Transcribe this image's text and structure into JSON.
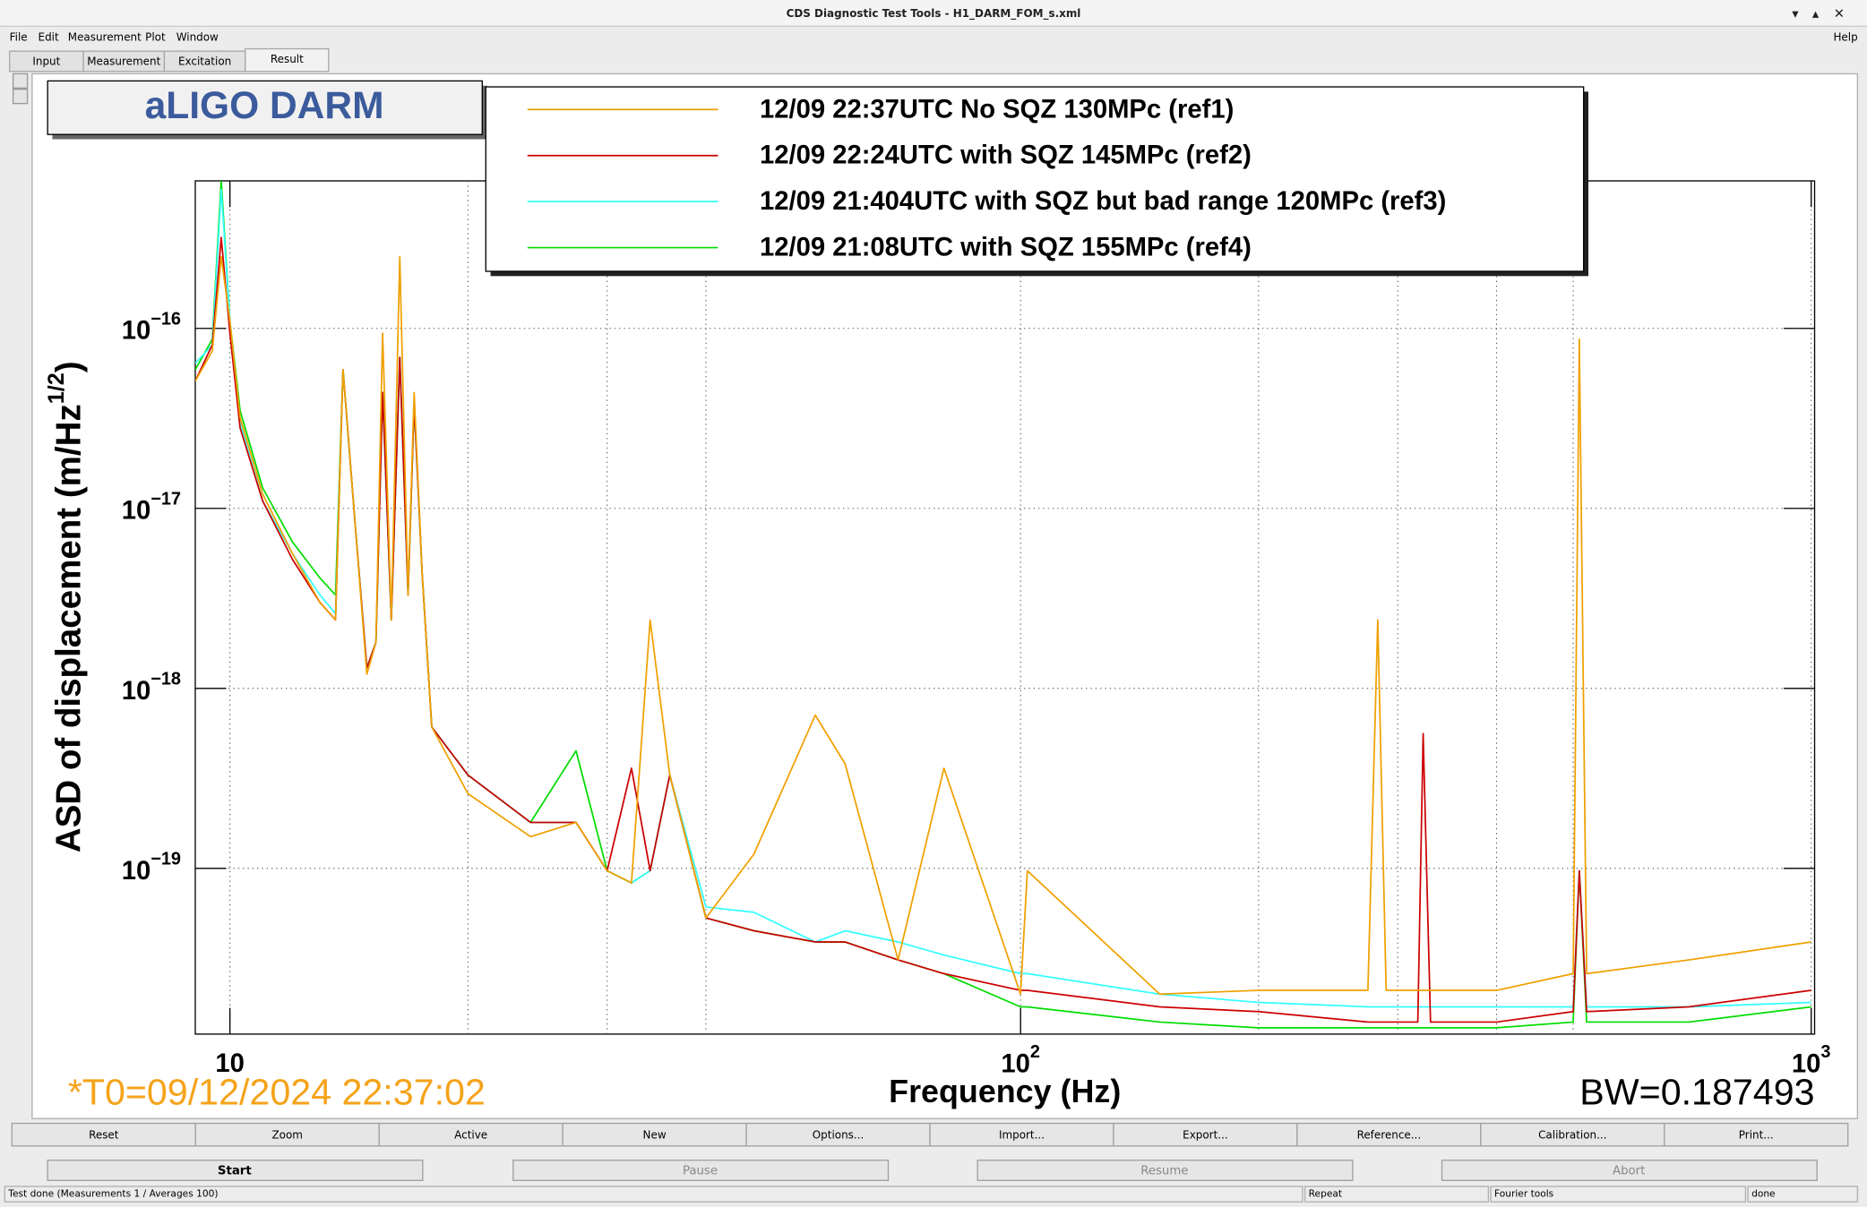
{
  "window": {
    "title": "CDS Diagnostic Test Tools - H1_DARM_FOM_s.xml",
    "menu": [
      "File",
      "Edit",
      "Measurement",
      "Plot",
      "Window"
    ],
    "help": "Help",
    "tabs": [
      "Input",
      "Measurement",
      "Excitation",
      "Result"
    ],
    "buttons": [
      "Reset",
      "Zoom",
      "Active",
      "New",
      "Options...",
      "Import...",
      "Export...",
      "Reference...",
      "Calibration...",
      "Print..."
    ],
    "controls": [
      "Start",
      "Pause",
      "Resume",
      "Abort"
    ],
    "status": [
      "Test done (Measurements 1 / Averages 100)",
      "Repeat",
      "Fourier tools",
      "done"
    ]
  },
  "chart_data": {
    "type": "line",
    "title": "aLIGO DARM",
    "xlabel": "Frequency (Hz)",
    "ylabel": {
      "text": "ASD of displacement (m/Hz",
      "exponent": "1/2",
      "close": ")"
    },
    "annotations": [
      "*T0=09/12/2024 22:37:02",
      "BW=0.187493"
    ],
    "x_log": true,
    "y_log": true,
    "grid": true,
    "xlim": [
      9.04,
      1010
    ],
    "ylim": [
      1.2e-20,
      6.6e-16
    ],
    "xticks": [
      10,
      {
        "value": 100,
        "label": "10",
        "exponent": "2"
      },
      {
        "value": 1000,
        "label": "10",
        "exponent": "3"
      }
    ],
    "xgrid": [
      20,
      30,
      40,
      200,
      300,
      400,
      500
    ],
    "yticks": [
      {
        "value": 1e-16,
        "label": "10",
        "exponent": "−16"
      },
      {
        "value": 1e-17,
        "label": "10",
        "exponent": "−17"
      },
      {
        "value": 1e-18,
        "label": "10",
        "exponent": "−18"
      },
      {
        "value": 1e-19,
        "label": "10",
        "exponent": "−19"
      }
    ],
    "x": [
      9.04,
      9.5,
      9.75,
      10,
      10.3,
      11,
      12,
      13,
      13.6,
      13.9,
      14.4,
      14.9,
      15.3,
      15.6,
      16.0,
      16.4,
      16.8,
      17.1,
      17.5,
      18,
      20,
      24,
      27.4,
      30,
      32.2,
      34,
      36,
      40,
      46,
      55,
      60,
      70,
      80,
      100,
      102,
      150,
      200,
      275,
      283,
      290,
      318,
      323,
      330,
      400,
      500,
      509,
      520,
      700,
      1000
    ],
    "series": [
      {
        "name": "12/09 22:37UTC No SQZ 130MPc (ref1)",
        "color": "#f0a000",
        "values": [
          5.1e-17,
          7.5e-17,
          2.5e-16,
          1.1e-16,
          3.2e-17,
          1.2e-17,
          5.6e-18,
          3e-18,
          2.4e-18,
          5.9e-17,
          8.2e-18,
          1.2e-18,
          1.8e-18,
          9.4e-17,
          2.4e-18,
          2.5e-16,
          3.3e-18,
          4.4e-17,
          4.4e-18,
          6.1e-19,
          2.6e-19,
          1.5e-19,
          1.8e-19,
          9.7e-20,
          8.3e-20,
          2.4e-18,
          3.3e-19,
          5.3e-20,
          1.2e-19,
          7.1e-19,
          3.8e-19,
          3.1e-20,
          3.6e-19,
          2e-20,
          9.7e-20,
          2e-20,
          2.1e-20,
          2.1e-20,
          2.4e-18,
          2.1e-20,
          2.1e-20,
          2.1e-20,
          2.1e-20,
          2.1e-20,
          2.6e-20,
          8.7e-17,
          2.6e-20,
          3.1e-20,
          3.9e-20
        ]
      },
      {
        "name": "12/09 22:24UTC with SQZ 145MPc (ref2)",
        "color": "#cc0000",
        "values": [
          5.1e-17,
          8.1e-17,
          3.2e-16,
          9.4e-17,
          2.8e-17,
          1.1e-17,
          5.2e-18,
          3e-18,
          2.4e-18,
          5.9e-17,
          8.2e-18,
          1.3e-18,
          1.8e-18,
          4.4e-17,
          2.4e-18,
          6.9e-17,
          3.3e-18,
          3.8e-17,
          4.4e-18,
          6.1e-19,
          3.3e-19,
          1.8e-19,
          1.8e-19,
          9.7e-20,
          3.6e-19,
          9.7e-20,
          3.3e-19,
          5.3e-20,
          4.5e-20,
          3.9e-20,
          3.9e-20,
          3.1e-20,
          2.6e-20,
          2.1e-20,
          2.1e-20,
          1.7e-20,
          1.6e-20,
          1.4e-20,
          1.4e-20,
          1.4e-20,
          1.4e-20,
          5.6e-19,
          1.4e-20,
          1.4e-20,
          1.6e-20,
          9.7e-20,
          1.6e-20,
          1.7e-20,
          2.1e-20
        ]
      },
      {
        "name": "12/09 21:404UTC with SQZ but bad range 120MPc (ref3)",
        "color": "#33ffff",
        "values": [
          6.4e-17,
          8.1e-17,
          5.9e-16,
          1.1e-16,
          3e-17,
          1.1e-17,
          5.6e-18,
          3.3e-18,
          2.6e-18,
          5.9e-17,
          8.2e-18,
          1.3e-18,
          1.8e-18,
          4.4e-17,
          2.4e-18,
          6.9e-17,
          3.3e-18,
          3.8e-17,
          4.4e-18,
          6.1e-19,
          3.3e-19,
          1.8e-19,
          1.8e-19,
          9.7e-20,
          8.3e-20,
          9.7e-20,
          3.3e-19,
          6.1e-20,
          5.7e-20,
          3.9e-20,
          4.5e-20,
          3.9e-20,
          3.3e-20,
          2.6e-20,
          2.6e-20,
          2e-20,
          1.8e-20,
          1.7e-20,
          1.7e-20,
          1.7e-20,
          1.7e-20,
          1.7e-20,
          1.7e-20,
          1.7e-20,
          1.7e-20,
          9.7e-20,
          1.7e-20,
          1.7e-20,
          1.8e-20
        ]
      },
      {
        "name": "12/09 21:08UTC with SQZ 155MPc (ref4)",
        "color": "#00dd00",
        "values": [
          5.9e-17,
          8.7e-17,
          6.65e-16,
          1.1e-16,
          3.5e-17,
          1.3e-17,
          6.5e-18,
          4.1e-18,
          3.3e-18,
          5.9e-17,
          8.2e-18,
          1.3e-18,
          1.8e-18,
          4.4e-17,
          2.4e-18,
          6.9e-17,
          3.3e-18,
          3.8e-17,
          4.4e-18,
          6.1e-19,
          3.3e-19,
          1.8e-19,
          4.5e-19,
          9.7e-20,
          8.3e-20,
          9.7e-20,
          3.3e-19,
          5.3e-20,
          4.5e-20,
          3.9e-20,
          3.9e-20,
          3.1e-20,
          2.6e-20,
          1.7e-20,
          1.7e-20,
          1.4e-20,
          1.3e-20,
          1.3e-20,
          1.3e-20,
          1.3e-20,
          1.3e-20,
          1.3e-20,
          1.3e-20,
          1.3e-20,
          1.4e-20,
          9.7e-20,
          1.4e-20,
          1.4e-20,
          1.7e-20
        ]
      }
    ]
  }
}
